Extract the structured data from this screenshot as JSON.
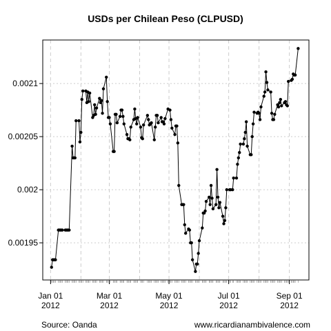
{
  "chart_data": {
    "type": "line",
    "title": "USDs per Chilean Peso (CLPUSD)",
    "source": "Source: Oanda",
    "credit": "www.ricardianambivalence.com",
    "color": "#000000",
    "grid": true,
    "xlim": [
      "2011-12-24",
      "2012-09-21"
    ],
    "xticks": [
      {
        "value": "2012-01-01",
        "label": "Jan 01\n2012"
      },
      {
        "value": "2012-03-01",
        "label": "Mar 01\n2012"
      },
      {
        "value": "2012-05-01",
        "label": "May 01\n2012"
      },
      {
        "value": "2012-07-01",
        "label": "Jul 01\n2012"
      },
      {
        "value": "2012-09-01",
        "label": "Sep 01\n2012"
      }
    ],
    "xgrid": [
      "2012-01-01",
      "2012-02-01",
      "2012-03-01",
      "2012-04-01",
      "2012-05-01",
      "2012-06-01",
      "2012-07-01",
      "2012-08-01",
      "2012-09-01"
    ],
    "ylim": [
      0.001915,
      0.002141
    ],
    "yticks": [
      0.00195,
      0.002,
      0.00205,
      0.0021
    ],
    "x": [
      "2012-01-02",
      "2012-01-03",
      "2012-01-04",
      "2012-01-05",
      "2012-01-06",
      "2012-01-09",
      "2012-01-10",
      "2012-01-11",
      "2012-01-12",
      "2012-01-13",
      "2012-01-16",
      "2012-01-17",
      "2012-01-18",
      "2012-01-19",
      "2012-01-20",
      "2012-01-23",
      "2012-01-24",
      "2012-01-25",
      "2012-01-26",
      "2012-01-27",
      "2012-01-30",
      "2012-01-31",
      "2012-02-01",
      "2012-02-02",
      "2012-02-03",
      "2012-02-06",
      "2012-02-07",
      "2012-02-08",
      "2012-02-09",
      "2012-02-10",
      "2012-02-13",
      "2012-02-14",
      "2012-02-15",
      "2012-02-16",
      "2012-02-17",
      "2012-02-20",
      "2012-02-21",
      "2012-02-22",
      "2012-02-23",
      "2012-02-24",
      "2012-02-27",
      "2012-02-28",
      "2012-02-29",
      "2012-03-01",
      "2012-03-02",
      "2012-03-05",
      "2012-03-06",
      "2012-03-07",
      "2012-03-08",
      "2012-03-09",
      "2012-03-12",
      "2012-03-13",
      "2012-03-14",
      "2012-03-15",
      "2012-03-16",
      "2012-03-19",
      "2012-03-20",
      "2012-03-21",
      "2012-03-22",
      "2012-03-23",
      "2012-03-26",
      "2012-03-27",
      "2012-03-28",
      "2012-03-29",
      "2012-03-30",
      "2012-04-02",
      "2012-04-03",
      "2012-04-04",
      "2012-04-05",
      "2012-04-09",
      "2012-04-10",
      "2012-04-11",
      "2012-04-12",
      "2012-04-13",
      "2012-04-16",
      "2012-04-17",
      "2012-04-18",
      "2012-04-19",
      "2012-04-20",
      "2012-04-23",
      "2012-04-24",
      "2012-04-25",
      "2012-04-26",
      "2012-04-27",
      "2012-04-30",
      "2012-05-02",
      "2012-05-03",
      "2012-05-04",
      "2012-05-07",
      "2012-05-08",
      "2012-05-09",
      "2012-05-10",
      "2012-05-11",
      "2012-05-14",
      "2012-05-15",
      "2012-05-16",
      "2012-05-17",
      "2012-05-18",
      "2012-05-21",
      "2012-05-22",
      "2012-05-23",
      "2012-05-24",
      "2012-05-25",
      "2012-05-28",
      "2012-05-29",
      "2012-05-30",
      "2012-05-31",
      "2012-06-01",
      "2012-06-04",
      "2012-06-05",
      "2012-06-06",
      "2012-06-07",
      "2012-06-08",
      "2012-06-11",
      "2012-06-12",
      "2012-06-13",
      "2012-06-14",
      "2012-06-15",
      "2012-06-18",
      "2012-06-19",
      "2012-06-20",
      "2012-06-21",
      "2012-06-22",
      "2012-06-25",
      "2012-06-26",
      "2012-06-27",
      "2012-06-28",
      "2012-06-29",
      "2012-07-02",
      "2012-07-03",
      "2012-07-05",
      "2012-07-06",
      "2012-07-09",
      "2012-07-10",
      "2012-07-11",
      "2012-07-12",
      "2012-07-13",
      "2012-07-16",
      "2012-07-17",
      "2012-07-18",
      "2012-07-19",
      "2012-07-20",
      "2012-07-23",
      "2012-07-24",
      "2012-07-25",
      "2012-07-26",
      "2012-07-27",
      "2012-07-30",
      "2012-07-31",
      "2012-08-01",
      "2012-08-02",
      "2012-08-03",
      "2012-08-06",
      "2012-08-07",
      "2012-08-08",
      "2012-08-09",
      "2012-08-10",
      "2012-08-13",
      "2012-08-14",
      "2012-08-15",
      "2012-08-16",
      "2012-08-17",
      "2012-08-20",
      "2012-08-21",
      "2012-08-22",
      "2012-08-23",
      "2012-08-24",
      "2012-08-27",
      "2012-08-28",
      "2012-08-29",
      "2012-08-30",
      "2012-08-31",
      "2012-09-03",
      "2012-09-04",
      "2012-09-05",
      "2012-09-06",
      "2012-09-07",
      "2012-09-10"
    ],
    "values": [
      0.001927,
      0.001934,
      0.001934,
      0.001934,
      0.001934,
      0.001962,
      0.001962,
      0.001962,
      0.001962,
      0.001962,
      0.001962,
      0.001962,
      0.001962,
      0.001962,
      0.001962,
      0.002041,
      0.00203,
      0.00203,
      0.00203,
      0.002065,
      0.002065,
      0.002045,
      0.002054,
      0.002085,
      0.002093,
      0.002093,
      0.002082,
      0.002092,
      0.002083,
      0.002091,
      0.002068,
      0.00207,
      0.00208,
      0.002071,
      0.002077,
      0.002086,
      0.002082,
      0.002084,
      0.002072,
      0.002095,
      0.002106,
      0.002083,
      0.002068,
      0.002068,
      0.002062,
      0.002036,
      0.002036,
      0.002071,
      0.002071,
      0.002063,
      0.002069,
      0.002075,
      0.002075,
      0.002069,
      0.002062,
      0.002052,
      0.002048,
      0.002048,
      0.002047,
      0.002059,
      0.002066,
      0.002076,
      0.002067,
      0.002062,
      0.002068,
      0.002059,
      0.002049,
      0.002048,
      0.002061,
      0.00207,
      0.002066,
      0.002061,
      0.002062,
      0.002063,
      0.002047,
      0.002059,
      0.00207,
      0.00207,
      0.002063,
      0.002068,
      0.002064,
      0.002064,
      0.002062,
      0.002067,
      0.002076,
      0.002075,
      0.002066,
      0.002058,
      0.002052,
      0.00206,
      0.00206,
      0.002044,
      0.002004,
      0.001986,
      0.001986,
      0.001986,
      0.001967,
      0.001959,
      0.001963,
      0.001962,
      0.00195,
      0.00195,
      0.001934,
      0.001923,
      0.00193,
      0.00193,
      0.00194,
      0.001952,
      0.001964,
      0.001978,
      0.001978,
      0.00198,
      0.001989,
      0.001993,
      0.001986,
      0.002004,
      0.001992,
      0.001982,
      0.001986,
      0.002019,
      0.001993,
      0.001983,
      0.001988,
      0.001975,
      0.001968,
      0.001971,
      0.001983,
      0.002,
      0.002,
      0.002,
      0.002,
      0.002011,
      0.002011,
      0.002024,
      0.00203,
      0.002035,
      0.002043,
      0.002043,
      0.002048,
      0.002054,
      0.002064,
      0.002041,
      0.002033,
      0.002033,
      0.00205,
      0.002062,
      0.002073,
      0.002072,
      0.002073,
      0.002072,
      0.002066,
      0.002078,
      0.002088,
      0.002092,
      0.002111,
      0.002101,
      0.002094,
      0.002092,
      0.002072,
      0.002066,
      0.002066,
      0.002071,
      0.00208,
      0.002078,
      0.002082,
      0.002085,
      0.002079,
      0.002082,
      0.002083,
      0.00208,
      0.002079,
      0.002102,
      0.002103,
      0.002104,
      0.002109,
      0.002108,
      0.002108,
      0.002133
    ]
  }
}
